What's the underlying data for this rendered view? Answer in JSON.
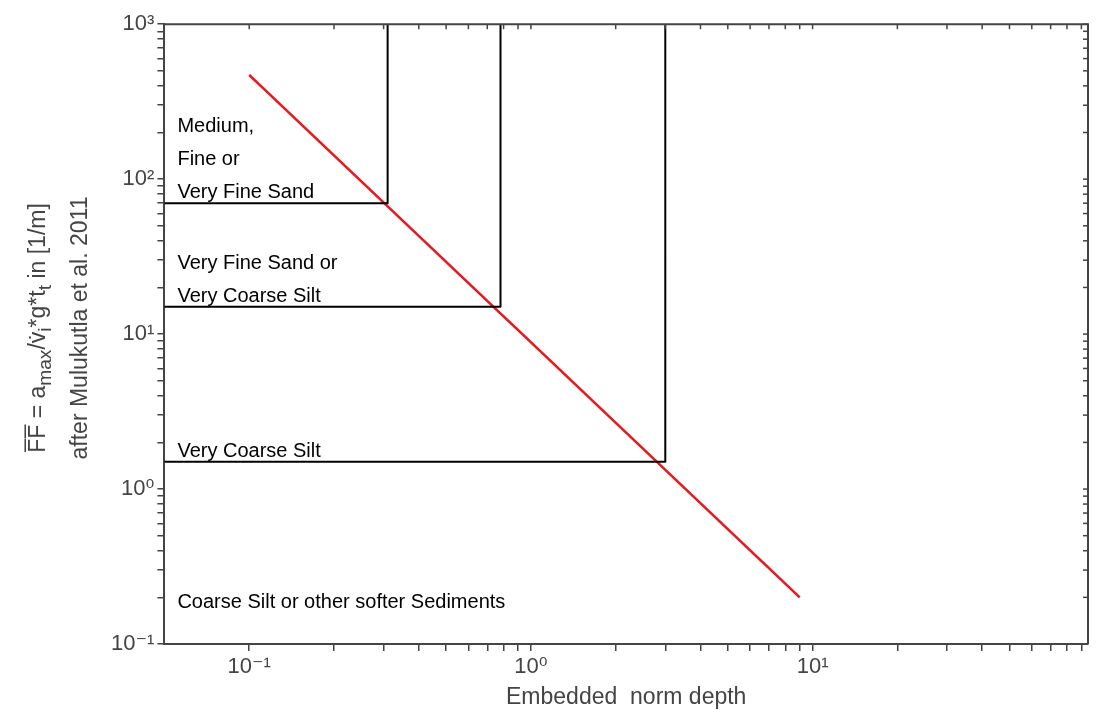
{
  "chart_data": {
    "type": "line",
    "xlabel": "Embedded  norm depth",
    "ylabel": "F̅F̅ = a$_{max}$/v̇$_{i}$*g*t$_{t}$ in [1/m]\nafter Mulukutla et al. 2011",
    "log": "xy",
    "grid": false,
    "marker": "none",
    "line_style": "solid",
    "xlim": [
      0.05,
      95
    ],
    "ylim": [
      0.1,
      1000
    ],
    "xticks": [
      {
        "value": 0.1,
        "label": "10⁻¹"
      },
      {
        "value": 0.2,
        "label": null
      },
      {
        "value": 0.3,
        "label": null
      },
      {
        "value": 0.4,
        "label": null
      },
      {
        "value": 0.5,
        "label": null
      },
      {
        "value": 0.6,
        "label": null
      },
      {
        "value": 0.7,
        "label": null
      },
      {
        "value": 0.8,
        "label": null
      },
      {
        "value": 0.9,
        "label": null
      },
      {
        "value": 1,
        "label": "10⁰"
      },
      {
        "value": 2,
        "label": null
      },
      {
        "value": 3,
        "label": null
      },
      {
        "value": 4,
        "label": null
      },
      {
        "value": 5,
        "label": null
      },
      {
        "value": 6,
        "label": null
      },
      {
        "value": 7,
        "label": null
      },
      {
        "value": 8,
        "label": null
      },
      {
        "value": 9,
        "label": null
      },
      {
        "value": 10,
        "label": "10¹"
      },
      {
        "value": 20,
        "label": null
      },
      {
        "value": 30,
        "label": null
      },
      {
        "value": 40,
        "label": null
      },
      {
        "value": 50,
        "label": null
      },
      {
        "value": 60,
        "label": null
      },
      {
        "value": 70,
        "label": null
      },
      {
        "value": 80,
        "label": null
      },
      {
        "value": 90,
        "label": null
      }
    ],
    "yticks": [
      {
        "value": 0.1,
        "label": "10⁻¹"
      },
      {
        "value": 0.2,
        "label": null
      },
      {
        "value": 0.3,
        "label": null
      },
      {
        "value": 0.4,
        "label": null
      },
      {
        "value": 0.5,
        "label": null
      },
      {
        "value": 0.6,
        "label": null
      },
      {
        "value": 0.7,
        "label": null
      },
      {
        "value": 0.8,
        "label": null
      },
      {
        "value": 0.9,
        "label": null
      },
      {
        "value": 1,
        "label": "10⁰"
      },
      {
        "value": 2,
        "label": null
      },
      {
        "value": 3,
        "label": null
      },
      {
        "value": 4,
        "label": null
      },
      {
        "value": 5,
        "label": null
      },
      {
        "value": 6,
        "label": null
      },
      {
        "value": 7,
        "label": null
      },
      {
        "value": 8,
        "label": null
      },
      {
        "value": 9,
        "label": null
      },
      {
        "value": 10,
        "label": "10¹"
      },
      {
        "value": 20,
        "label": null
      },
      {
        "value": 30,
        "label": null
      },
      {
        "value": 40,
        "label": null
      },
      {
        "value": 50,
        "label": null
      },
      {
        "value": 60,
        "label": null
      },
      {
        "value": 70,
        "label": null
      },
      {
        "value": 80,
        "label": null
      },
      {
        "value": 90,
        "label": null
      },
      {
        "value": 100,
        "label": "10²"
      },
      {
        "value": 200,
        "label": null
      },
      {
        "value": 300,
        "label": null
      },
      {
        "value": 400,
        "label": null
      },
      {
        "value": 500,
        "label": null
      },
      {
        "value": 600,
        "label": null
      },
      {
        "value": 700,
        "label": null
      },
      {
        "value": 800,
        "label": null
      },
      {
        "value": 900,
        "label": null
      },
      {
        "value": 1000,
        "label": "10³"
      }
    ],
    "series": [
      {
        "color": "#000000",
        "x": [
          0.05,
          0.31,
          0.31
        ],
        "values": [
          70,
          70,
          1000
        ]
      },
      {
        "color": "#000000",
        "x": [
          0.05,
          0.78,
          0.78
        ],
        "values": [
          15,
          15,
          1000
        ]
      },
      {
        "color": "#000000",
        "x": [
          0.05,
          3,
          3
        ],
        "values": [
          1.5,
          1.5,
          1000
        ]
      },
      {
        "color": "#e8191e",
        "x": [
          0.1,
          9
        ],
        "values": [
          470,
          0.2
        ]
      }
    ],
    "annotations": [
      "Medium,\nFine or\nVery Fine Sand",
      "Very Fine Sand or\nVery Coarse Silt",
      "Very Coarse Silt",
      "Coarse Silt or other softer Sediments"
    ]
  }
}
